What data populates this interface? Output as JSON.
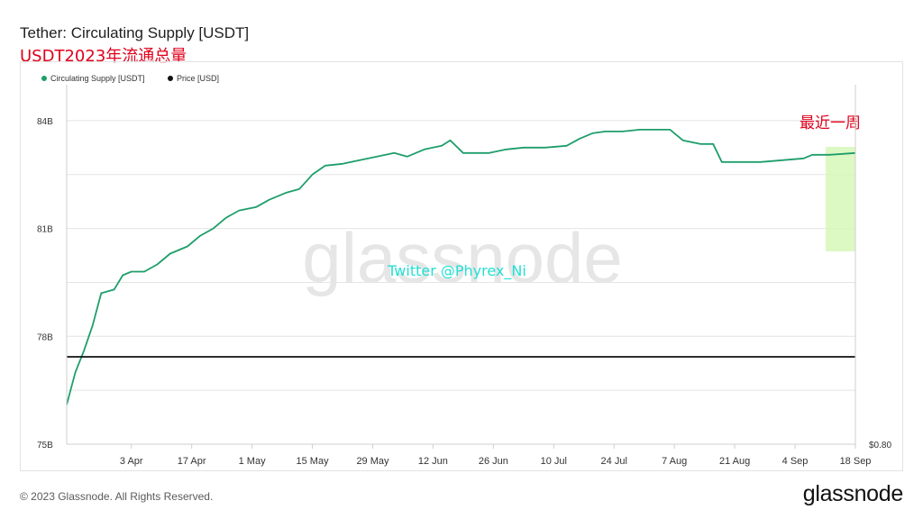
{
  "title": "Tether: Circulating Supply [USDT]",
  "subtitle": "USDT2023年流通总量",
  "footer": {
    "copyright": "© 2023 Glassnode. All Rights Reserved.",
    "brand": "glassnode"
  },
  "watermark": "glassnode",
  "overlay_text": "Twitter @Phyrex_Ni",
  "highlight_label": "最近一周",
  "colors": {
    "supply": "#1e9e6a",
    "price": "#111111",
    "highlight": "#d6f7b8",
    "highlight_label": "#e0001b",
    "overlay_text": "#22e0d3"
  },
  "chart_data": {
    "type": "line",
    "title": "Tether: Circulating Supply [USDT]",
    "legend": [
      "Circulating Supply [USDT]",
      "Price [USD]"
    ],
    "legend_position": "top-left",
    "grid": true,
    "x_ticks": [
      "3 Apr",
      "17 Apr",
      "1 May",
      "15 May",
      "29 May",
      "12 Jun",
      "26 Jun",
      "10 Jul",
      "24 Jul",
      "7 Aug",
      "21 Aug",
      "4 Sep",
      "18 Sep"
    ],
    "y_left_ticks": [
      "75B",
      "78B",
      "81B",
      "84B"
    ],
    "y_left_range": [
      75.0,
      85.0
    ],
    "y_right_tick": "$0.80",
    "highlight_range": [
      "12 Sep",
      "18 Sep"
    ],
    "series": [
      {
        "name": "Circulating Supply [USDT]",
        "unit": "B",
        "points": [
          [
            "2023-03-19",
            76.1
          ],
          [
            "2023-03-21",
            77.0
          ],
          [
            "2023-03-23",
            77.6
          ],
          [
            "2023-03-25",
            78.3
          ],
          [
            "2023-03-27",
            79.2
          ],
          [
            "2023-03-30",
            79.3
          ],
          [
            "2023-04-01",
            79.7
          ],
          [
            "2023-04-03",
            79.8
          ],
          [
            "2023-04-06",
            79.8
          ],
          [
            "2023-04-09",
            80.0
          ],
          [
            "2023-04-12",
            80.3
          ],
          [
            "2023-04-16",
            80.5
          ],
          [
            "2023-04-19",
            80.8
          ],
          [
            "2023-04-22",
            81.0
          ],
          [
            "2023-04-25",
            81.3
          ],
          [
            "2023-04-28",
            81.5
          ],
          [
            "2023-05-02",
            81.6
          ],
          [
            "2023-05-05",
            81.8
          ],
          [
            "2023-05-09",
            82.0
          ],
          [
            "2023-05-12",
            82.1
          ],
          [
            "2023-05-15",
            82.5
          ],
          [
            "2023-05-18",
            82.75
          ],
          [
            "2023-05-22",
            82.8
          ],
          [
            "2023-05-26",
            82.9
          ],
          [
            "2023-05-30",
            83.0
          ],
          [
            "2023-06-03",
            83.1
          ],
          [
            "2023-06-06",
            83.0
          ],
          [
            "2023-06-10",
            83.2
          ],
          [
            "2023-06-14",
            83.3
          ],
          [
            "2023-06-16",
            83.45
          ],
          [
            "2023-06-19",
            83.1
          ],
          [
            "2023-06-25",
            83.1
          ],
          [
            "2023-06-29",
            83.2
          ],
          [
            "2023-07-03",
            83.25
          ],
          [
            "2023-07-08",
            83.25
          ],
          [
            "2023-07-13",
            83.3
          ],
          [
            "2023-07-16",
            83.5
          ],
          [
            "2023-07-19",
            83.65
          ],
          [
            "2023-07-22",
            83.7
          ],
          [
            "2023-07-26",
            83.7
          ],
          [
            "2023-07-30",
            83.75
          ],
          [
            "2023-08-03",
            83.75
          ],
          [
            "2023-08-06",
            83.75
          ],
          [
            "2023-08-09",
            83.45
          ],
          [
            "2023-08-13",
            83.35
          ],
          [
            "2023-08-16",
            83.35
          ],
          [
            "2023-08-18",
            82.85
          ],
          [
            "2023-08-22",
            82.85
          ],
          [
            "2023-08-27",
            82.85
          ],
          [
            "2023-09-01",
            82.9
          ],
          [
            "2023-09-06",
            82.95
          ],
          [
            "2023-09-08",
            83.05
          ],
          [
            "2023-09-12",
            83.05
          ],
          [
            "2023-09-18",
            83.1
          ]
        ]
      },
      {
        "name": "Price [USD]",
        "unit": "USD",
        "points": [
          [
            "2023-03-19",
            1.0
          ],
          [
            "2023-04-03",
            1.0
          ],
          [
            "2023-05-01",
            1.0
          ],
          [
            "2023-06-01",
            1.0
          ],
          [
            "2023-07-01",
            1.0
          ],
          [
            "2023-08-01",
            1.0
          ],
          [
            "2023-09-01",
            1.0
          ],
          [
            "2023-09-18",
            1.0
          ]
        ]
      }
    ]
  }
}
